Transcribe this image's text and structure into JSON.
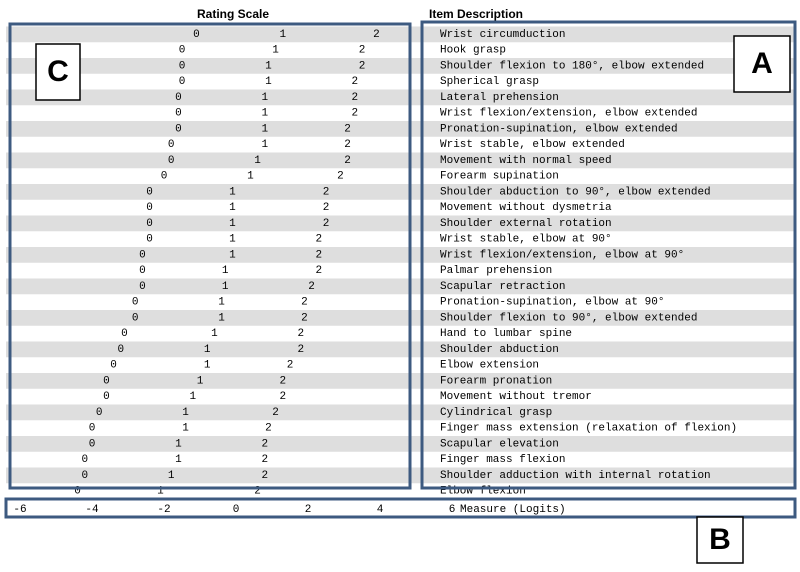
{
  "chart_data": {
    "type": "item-map",
    "headers": [
      "Rating Scale",
      "Item Description"
    ],
    "scores": [
      0,
      1,
      2
    ],
    "categories": [
      "Wrist circumduction",
      "Hook grasp",
      "Shoulder flexion to 180°, elbow extended",
      "Spherical grasp",
      "Lateral prehension",
      "Wrist flexion/extension, elbow extended",
      "Pronation-supination, elbow extended",
      "Wrist stable, elbow extended",
      "Movement with normal speed",
      "Forearm supination",
      "Shoulder abduction to 90°, elbow extended",
      "Movement without dysmetria",
      "Shoulder external rotation",
      "Wrist stable, elbow at 90°",
      "Wrist flexion/extension, elbow at 90°",
      "Palmar prehension",
      "Scapular retraction",
      "Pronation-supination, elbow at 90°",
      "Shoulder flexion to 90°, elbow extended",
      "Hand to lumbar spine",
      "Shoulder abduction",
      "Elbow extension",
      "Forearm pronation",
      "Movement without tremor",
      "Cylindrical grasp",
      "Finger mass extension (relaxation of flexion)",
      "Scapular elevation",
      "Finger mass flexion",
      "Shoulder adduction with internal rotation",
      "Elbow flexion"
    ],
    "values": [
      [
        -1.1,
        1.3,
        3.9
      ],
      [
        -1.5,
        1.1,
        3.5
      ],
      [
        -1.5,
        0.9,
        3.5
      ],
      [
        -1.5,
        0.9,
        3.3
      ],
      [
        -1.6,
        0.8,
        3.3
      ],
      [
        -1.6,
        0.8,
        3.3
      ],
      [
        -1.6,
        0.8,
        3.1
      ],
      [
        -1.8,
        0.8,
        3.1
      ],
      [
        -1.8,
        0.6,
        3.1
      ],
      [
        -2.0,
        0.4,
        2.9
      ],
      [
        -2.4,
        -0.1,
        2.5
      ],
      [
        -2.4,
        -0.1,
        2.5
      ],
      [
        -2.4,
        -0.1,
        2.5
      ],
      [
        -2.4,
        -0.1,
        2.3
      ],
      [
        -2.6,
        -0.1,
        2.3
      ],
      [
        -2.6,
        -0.3,
        2.3
      ],
      [
        -2.6,
        -0.3,
        2.1
      ],
      [
        -2.8,
        -0.4,
        1.9
      ],
      [
        -2.8,
        -0.4,
        1.9
      ],
      [
        -3.1,
        -0.6,
        1.8
      ],
      [
        -3.2,
        -0.8,
        1.8
      ],
      [
        -3.4,
        -0.8,
        1.5
      ],
      [
        -3.6,
        -1.0,
        1.3
      ],
      [
        -3.6,
        -1.2,
        1.3
      ],
      [
        -3.8,
        -1.4,
        1.1
      ],
      [
        -4.0,
        -1.4,
        0.9
      ],
      [
        -4.0,
        -1.6,
        0.8
      ],
      [
        -4.2,
        -1.6,
        0.8
      ],
      [
        -4.2,
        -1.8,
        0.8
      ],
      [
        -4.4,
        -2.1,
        0.6
      ]
    ],
    "xlim": [
      -6,
      6
    ],
    "xticks": [
      -6,
      -4,
      -2,
      0,
      2,
      4,
      6
    ],
    "x_label": "Measure (Logits)",
    "box_labels": [
      "A",
      "B",
      "C"
    ]
  }
}
